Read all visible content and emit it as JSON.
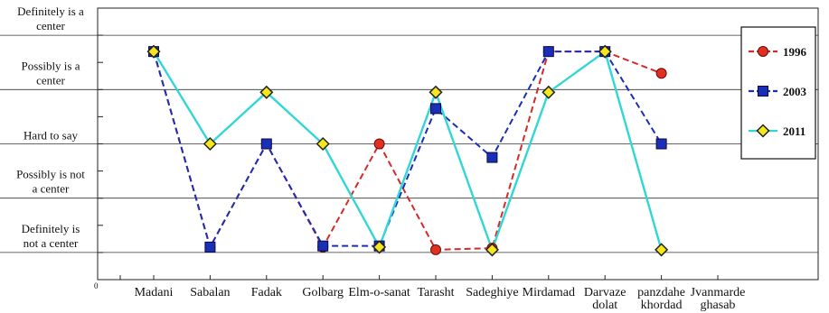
{
  "chart_data": {
    "type": "line",
    "origin_label": "0",
    "categories": [
      [
        "Madani"
      ],
      [
        "Sabalan"
      ],
      [
        "Fadak"
      ],
      [
        "Golbarg"
      ],
      [
        "Elm-o-sanat"
      ],
      [
        "Tarasht"
      ],
      [
        "Sadeghiye"
      ],
      [
        "Mirdamad"
      ],
      [
        "Darvaze",
        "dolat"
      ],
      [
        "panzdahe",
        "khordad"
      ],
      [
        "Jvanmarde",
        "ghasab"
      ]
    ],
    "y_levels": [
      {
        "value": 1,
        "label": [
          "Definitely is",
          "not a center"
        ]
      },
      {
        "value": 2,
        "label": [
          "Possibly is not",
          "a center"
        ]
      },
      {
        "value": 3,
        "label": [
          "Hard to say"
        ]
      },
      {
        "value": 4,
        "label": [
          "Possibly is a",
          "center"
        ]
      },
      {
        "value": 5,
        "label": [
          "Definitely is a",
          "center"
        ]
      }
    ],
    "ylim": [
      0.5,
      5.5
    ],
    "grid": true,
    "legend_position": "top-right",
    "series": [
      {
        "name": "1996",
        "color": "#e03020",
        "line_color": "#d42a2a",
        "dash": "dashed",
        "marker": "circle",
        "values": [
          4.7,
          1.1,
          3.0,
          1.1,
          3.0,
          1.05,
          1.08,
          4.7,
          4.7,
          4.3,
          null
        ]
      },
      {
        "name": "2003",
        "color": "#1a2fb8",
        "line_color": "#1a2fb8",
        "dash": "dashed",
        "marker": "square",
        "values": [
          4.7,
          1.1,
          3.0,
          1.12,
          1.12,
          3.65,
          2.75,
          4.7,
          4.7,
          3.0,
          null
        ]
      },
      {
        "name": "2011",
        "color": "#f5e61e",
        "line_color": "#33d6d6",
        "dash": "solid",
        "marker": "diamond",
        "values": [
          4.7,
          3.0,
          3.95,
          3.0,
          1.1,
          3.95,
          1.05,
          3.95,
          4.7,
          1.05,
          null
        ]
      }
    ]
  }
}
